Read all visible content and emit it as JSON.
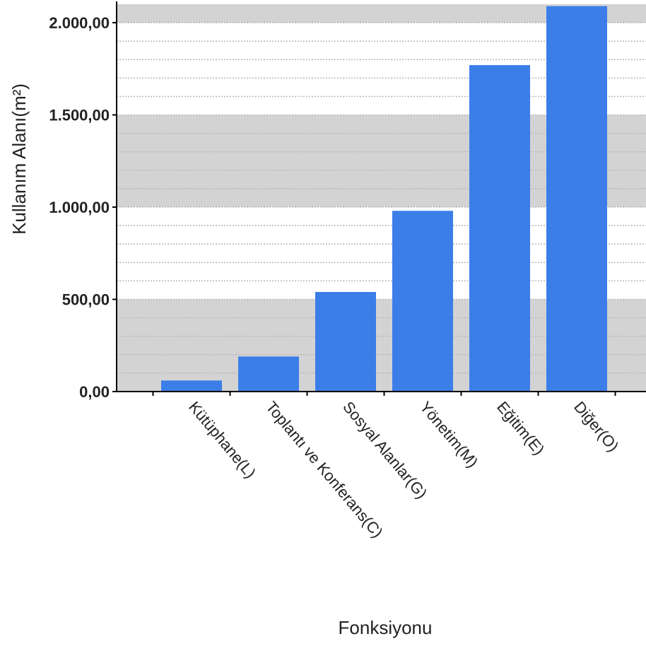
{
  "chart_data": {
    "type": "bar",
    "title": "",
    "xlabel": "Fonksiyonu",
    "ylabel": "Kullanım Alanı(m²)",
    "categories": [
      "Kütüphane(L)",
      "Toplantı ve Konferans(C)",
      "Sosyal Alanlar(G)",
      "Yönetim(M)",
      "Eğitim(E)",
      "Diğer(O)"
    ],
    "values": [
      60,
      190,
      540,
      980,
      1770,
      2090
    ],
    "ylim": [
      0,
      2100
    ],
    "yticks": [
      0,
      500,
      1000,
      1500,
      2000
    ],
    "ytick_labels": [
      "0,00",
      "500,00",
      "1.000,00",
      "1.500,00",
      "2.000,00"
    ],
    "minor_grid_step": 100,
    "bar_color": "#3c7ee8",
    "band_color": "#d3d3d3",
    "grid_color": "#b8b8b8"
  }
}
